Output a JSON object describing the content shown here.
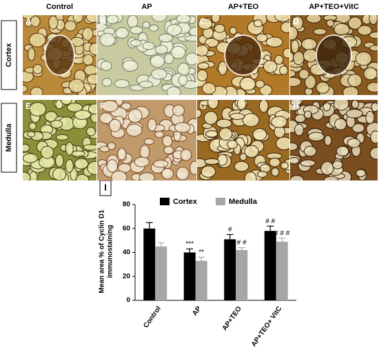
{
  "column_headers": [
    "Control",
    "AP",
    "AP+TEO",
    "AP+TEO+VitC"
  ],
  "row_labels": [
    "Cortex",
    "Medulla"
  ],
  "panel_letters": [
    "A",
    "B",
    "C",
    "D",
    "E",
    "F",
    "G",
    "H"
  ],
  "chart_panel_letter": "I",
  "chart_data": {
    "type": "bar",
    "ylabel": [
      "Mean area % of Cyclin D1",
      "immunostaining"
    ],
    "categories": [
      "Control",
      "AP",
      "AP+TEO",
      "AP+TEO+ VitC"
    ],
    "series": [
      {
        "name": "Cortex",
        "color": "#000000",
        "values": [
          60,
          40,
          51,
          58
        ],
        "errors": [
          5,
          3,
          4,
          4
        ],
        "annotations": [
          null,
          "***",
          "#",
          "# #"
        ]
      },
      {
        "name": "Medulla",
        "color": "#a6a6a6",
        "values": [
          45,
          33,
          42,
          49
        ],
        "errors": [
          3,
          3,
          2,
          3
        ],
        "annotations": [
          null,
          "**",
          "# #",
          "# # #"
        ]
      }
    ],
    "ylim": [
      0,
      80
    ],
    "yticks": [
      0,
      20,
      40,
      60,
      80
    ]
  }
}
